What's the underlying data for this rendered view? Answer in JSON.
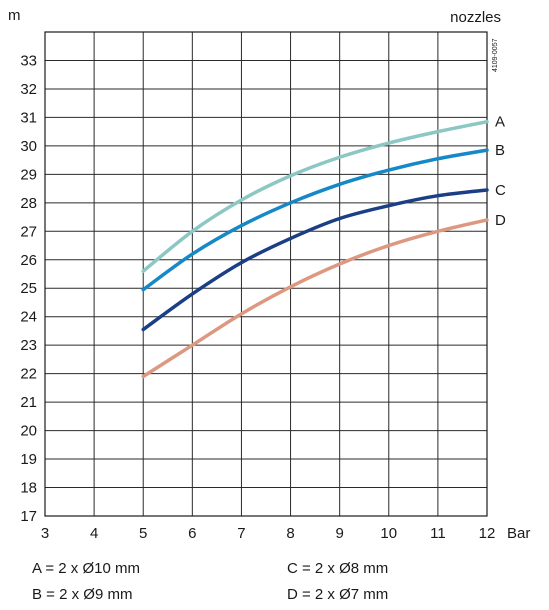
{
  "chart_data": {
    "type": "line",
    "ylabel": "m",
    "xlabel": "Bar",
    "legend_title": "nozzles",
    "figure_code": "4109-0057",
    "xlim": [
      3,
      12
    ],
    "ylim": [
      17,
      34
    ],
    "x_ticks": [
      3,
      4,
      5,
      6,
      7,
      8,
      9,
      10,
      11,
      12
    ],
    "y_ticks": [
      17,
      18,
      19,
      20,
      21,
      22,
      23,
      24,
      25,
      26,
      27,
      28,
      29,
      30,
      31,
      32,
      33
    ],
    "grid": true,
    "series": [
      {
        "name": "A",
        "color": "#8cc7c4",
        "x": [
          5,
          6,
          7,
          8,
          9,
          10,
          11,
          12
        ],
        "y": [
          25.6,
          27.0,
          28.1,
          28.95,
          29.6,
          30.1,
          30.5,
          30.85
        ]
      },
      {
        "name": "B",
        "color": "#1588c8",
        "x": [
          5,
          6,
          7,
          8,
          9,
          10,
          11,
          12
        ],
        "y": [
          24.95,
          26.2,
          27.2,
          28.0,
          28.65,
          29.15,
          29.55,
          29.85
        ]
      },
      {
        "name": "C",
        "color": "#1a3f84",
        "x": [
          5,
          6,
          7,
          8,
          9,
          10,
          11,
          12
        ],
        "y": [
          23.55,
          24.8,
          25.9,
          26.75,
          27.45,
          27.9,
          28.25,
          28.45
        ]
      },
      {
        "name": "D",
        "color": "#dc9880",
        "x": [
          5,
          6,
          7,
          8,
          9,
          10,
          11,
          12
        ],
        "y": [
          21.9,
          23.0,
          24.1,
          25.05,
          25.85,
          26.5,
          27.0,
          27.4
        ]
      }
    ],
    "legend": [
      {
        "text": "A = 2 x Ø10 mm"
      },
      {
        "text": "B = 2 x Ø9 mm"
      },
      {
        "text": "C = 2 x Ø8 mm"
      },
      {
        "text": "D = 2 x Ø7 mm"
      }
    ]
  }
}
